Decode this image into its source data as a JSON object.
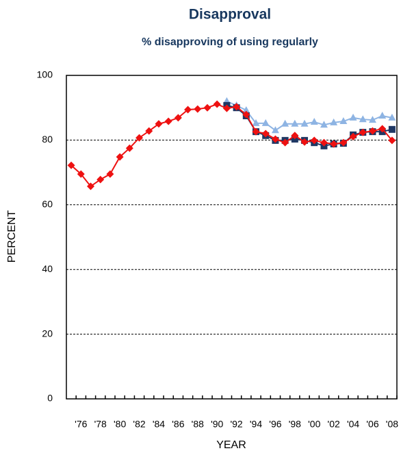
{
  "chart_data": {
    "type": "line",
    "title": "Disapproval",
    "subtitle": "% disapproving of using regularly",
    "ylabel": "PERCENT",
    "xlabel": "YEAR",
    "categories": [
      null,
      "'76",
      null,
      "'78",
      null,
      "'80",
      null,
      "'82",
      null,
      "'84",
      null,
      "'86",
      null,
      "'88",
      null,
      "'90",
      null,
      "'92",
      null,
      "'94",
      null,
      "'96",
      null,
      "'98",
      null,
      "'00",
      null,
      "'02",
      null,
      "'04",
      null,
      "'06",
      null,
      "'08"
    ],
    "ylim": [
      0,
      100
    ],
    "yticks": [
      0,
      20,
      40,
      60,
      80,
      100
    ],
    "grid": true,
    "series": [
      {
        "color": "#8eb4e3",
        "marker": "triangle",
        "values": [
          null,
          null,
          null,
          null,
          null,
          null,
          null,
          null,
          null,
          null,
          null,
          null,
          null,
          null,
          null,
          null,
          92.0,
          90.7,
          89.2,
          85.2,
          85.2,
          83.0,
          85.0,
          85.0,
          85.0,
          85.6,
          84.7,
          85.4,
          85.8,
          86.9,
          86.4,
          86.2,
          87.5,
          86.9
        ]
      },
      {
        "color": "#1f3864",
        "marker": "square",
        "values": [
          null,
          null,
          null,
          null,
          null,
          null,
          null,
          null,
          null,
          null,
          null,
          null,
          null,
          null,
          null,
          null,
          90.7,
          90.0,
          87.5,
          82.6,
          81.4,
          79.9,
          79.9,
          80.3,
          79.9,
          79.2,
          78.2,
          78.8,
          79.0,
          81.6,
          82.4,
          82.6,
          82.6,
          83.3
        ]
      },
      {
        "color": "#ee1111",
        "marker": "diamond",
        "values": [
          72.2,
          69.5,
          65.7,
          67.8,
          69.5,
          74.8,
          77.5,
          80.7,
          82.8,
          85.0,
          85.8,
          86.9,
          89.4,
          89.6,
          90.0,
          91.1,
          89.8,
          90.3,
          87.9,
          82.6,
          82.0,
          80.3,
          79.2,
          81.4,
          79.4,
          79.9,
          79.2,
          78.8,
          79.2,
          81.1,
          82.4,
          82.8,
          83.5,
          79.9
        ]
      }
    ]
  }
}
